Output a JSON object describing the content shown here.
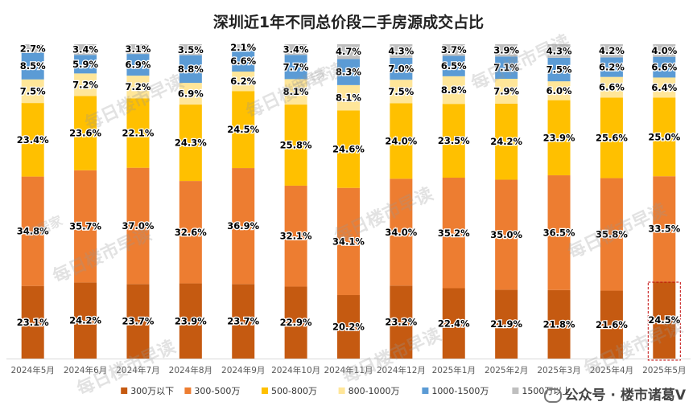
{
  "chart_data": {
    "type": "bar",
    "stacked": true,
    "title": "深圳近1年不同总价段二手房源成交占比",
    "categories": [
      "2024年5月",
      "2024年6月",
      "2024年7月",
      "2024年8月",
      "2024年9月",
      "2024年10月",
      "2024年11月",
      "2024年12月",
      "2025年1月",
      "2025年2月",
      "2025年3月",
      "2025年4月",
      "2025年5月"
    ],
    "series": [
      {
        "name": "300万以下",
        "color": "#C55A11",
        "values": [
          23.1,
          24.2,
          23.7,
          23.9,
          23.7,
          22.9,
          20.2,
          23.2,
          22.4,
          21.9,
          21.8,
          21.6,
          24.5
        ]
      },
      {
        "name": "300-500万",
        "color": "#ED7D31",
        "values": [
          34.8,
          35.7,
          37.0,
          32.6,
          36.9,
          32.1,
          34.1,
          34.0,
          35.2,
          35.0,
          36.5,
          35.8,
          33.5
        ]
      },
      {
        "name": "500-800万",
        "color": "#FFC000",
        "values": [
          23.4,
          23.6,
          22.1,
          24.3,
          24.5,
          25.8,
          24.6,
          24.0,
          23.5,
          24.2,
          23.9,
          25.6,
          25.0
        ]
      },
      {
        "name": "800-1000万",
        "color": "#FFE699",
        "values": [
          7.5,
          7.2,
          7.2,
          6.9,
          6.2,
          8.1,
          8.1,
          7.5,
          8.8,
          7.9,
          6.0,
          6.6,
          6.4
        ]
      },
      {
        "name": "1000-1500万",
        "color": "#5B9BD5",
        "values": [
          8.5,
          5.9,
          6.9,
          8.8,
          6.6,
          7.7,
          8.3,
          7.0,
          6.5,
          7.1,
          7.5,
          6.2,
          6.6
        ]
      },
      {
        "name": "1500万以上",
        "color": "#BFBFBF",
        "values": [
          2.7,
          3.4,
          3.1,
          3.5,
          2.1,
          3.4,
          4.7,
          4.3,
          3.7,
          3.9,
          4.3,
          4.2,
          4.0
        ]
      }
    ],
    "label_format": "percent_one_decimal",
    "ylim": [
      0,
      100
    ],
    "legend": "bottom",
    "highlight": "2025年5月 (dashed box)"
  },
  "watermark": {
    "brand": "每日楼市早读",
    "logo_text": "乐居家"
  },
  "credit": {
    "text": "公众号 · 楼市诸葛V"
  },
  "colors": {
    "label_text": "#000000",
    "highlight_box": "#C00000"
  }
}
